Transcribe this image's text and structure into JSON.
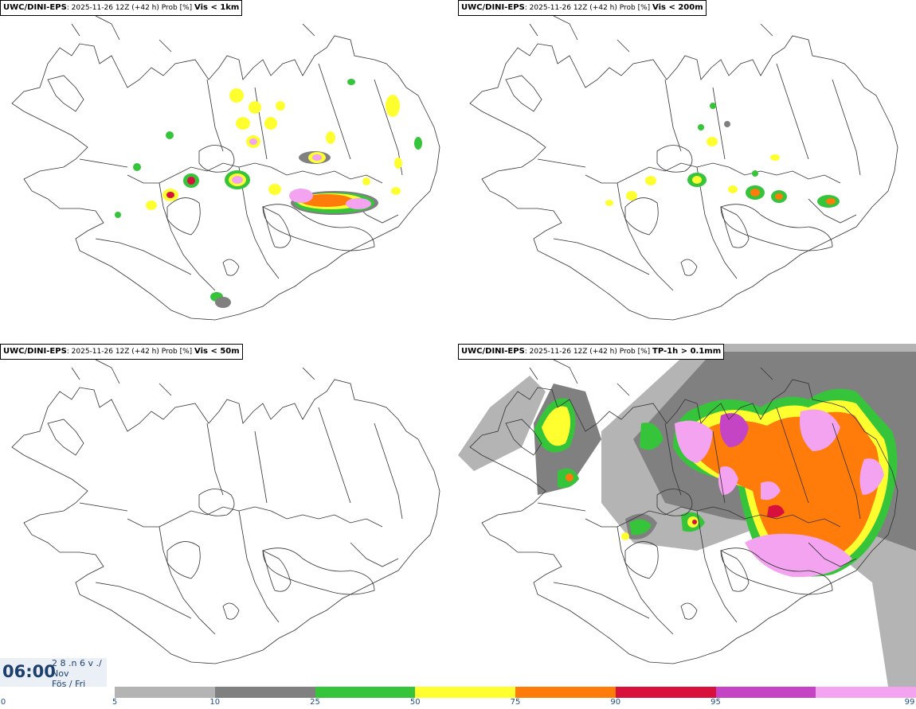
{
  "panels": [
    {
      "model": "UWC/DINI-EPS",
      "run": ": 2025-11-26 12Z (+42 h) Prob [%] ",
      "variable": "Vis < 1km"
    },
    {
      "model": "UWC/DINI-EPS",
      "run": ": 2025-11-26 12Z (+42 h) Prob [%] ",
      "variable": "Vis < 200m"
    },
    {
      "model": "UWC/DINI-EPS",
      "run": ": 2025-11-26 12Z (+42 h) Prob [%] ",
      "variable": "Vis < 50m"
    },
    {
      "model": "UWC/DINI-EPS",
      "run": ": 2025-11-26 12Z (+42 h) Prob [%] ",
      "variable": "TP-1h > 0.1mm"
    }
  ],
  "valid_time": {
    "time": "06:00",
    "line1": "2 8 .n 6 v ./",
    "line2": "Nov",
    "line3": "Fös / Fri"
  },
  "legend": {
    "ticks": [
      "0",
      "5",
      "10",
      "25",
      "50",
      "75",
      "90",
      "95",
      "99"
    ],
    "colors": [
      "#b4b4b4",
      "#808080",
      "#36c43a",
      "#ffff30",
      "#ff7b0a",
      "#d8103c",
      "#c544c4",
      "#f3a3f0"
    ]
  }
}
